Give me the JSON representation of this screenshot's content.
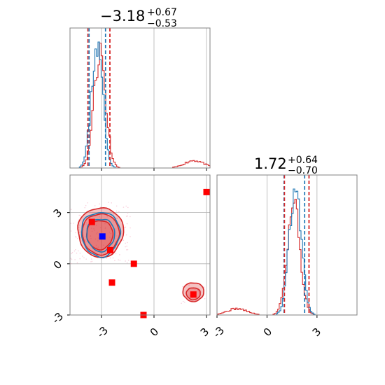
{
  "chart_data": {
    "type": "corner",
    "colors": {
      "series_a": "#1f77b4",
      "series_b": "#d62728",
      "grid": "#b0b0b0",
      "scatter": "#f4a6bd",
      "marker": "#ff0000",
      "marker_alt": "#0000ff"
    },
    "grid": true,
    "ranges": {
      "x": [
        -4.8,
        3.2
      ],
      "y": [
        -3.0,
        5.2
      ],
      "x2": [
        -3.0,
        5.4
      ]
    },
    "ticks": {
      "x": [
        "-3",
        "0",
        "3"
      ],
      "y": [
        "-3",
        "0",
        "3"
      ],
      "x2": [
        "-3",
        "0",
        "3"
      ]
    },
    "ticks_values": {
      "x": [
        -3,
        0,
        3
      ],
      "y": [
        -3,
        0,
        3
      ],
      "x2": [
        -3,
        0,
        3
      ]
    },
    "titles": [
      {
        "median": "−3.18",
        "upper": "+0.67",
        "lower": "−0.53"
      },
      {
        "median": "1.72",
        "upper": "+0.64",
        "lower": "−0.70"
      }
    ],
    "hist1": {
      "quantiles_a": [
        -3.71,
        -2.77
      ],
      "quantiles_b": [
        -3.78,
        -2.52
      ],
      "median_a": -2.77,
      "median_b": -2.52,
      "series_a_peaks": [
        {
          "x": -3.25,
          "h": 1.0
        }
      ],
      "series_b_peaks": [
        {
          "x": -3.1,
          "h": 0.92
        },
        {
          "x": 2.3,
          "h": 0.06
        }
      ]
    },
    "hist2": {
      "quantiles_a": [
        1.02,
        2.26
      ],
      "quantiles_b": [
        1.05,
        2.52
      ],
      "median_a": 2.26,
      "median_b": 2.52,
      "series_a_peaks": [
        {
          "x": 1.7,
          "h": 1.0
        }
      ],
      "series_b_peaks": [
        {
          "x": 1.6,
          "h": 0.88
        },
        {
          "x": -1.8,
          "h": 0.05
        }
      ]
    },
    "joint": {
      "contours_b": [
        {
          "cx": -3.05,
          "cy": 1.85,
          "rx": 1.3,
          "ry": 1.45
        },
        {
          "cx": -3.05,
          "cy": 1.75,
          "rx": 1.05,
          "ry": 1.2
        },
        {
          "cx": -3.1,
          "cy": 1.7,
          "rx": 0.75,
          "ry": 0.85
        },
        {
          "cx": 2.25,
          "cy": -1.65,
          "rx": 0.6,
          "ry": 0.55
        },
        {
          "cx": 2.25,
          "cy": -1.75,
          "rx": 0.4,
          "ry": 0.35
        }
      ],
      "contours_a": [
        {
          "cx": -3.05,
          "cy": 1.75,
          "rx": 1.1,
          "ry": 1.3
        },
        {
          "cx": -3.05,
          "cy": 1.7,
          "rx": 0.8,
          "ry": 0.95
        }
      ],
      "markers_red": [
        {
          "x": -3.55,
          "y": 2.45
        },
        {
          "x": -2.5,
          "y": 0.8
        },
        {
          "x": -1.15,
          "y": 0.0
        },
        {
          "x": -2.4,
          "y": -1.1
        },
        {
          "x": 2.25,
          "y": -1.8
        },
        {
          "x": 3.0,
          "y": 4.2
        },
        {
          "x": -0.6,
          "y": -3.0
        }
      ],
      "markers_blue": [
        {
          "x": -2.95,
          "y": 1.6
        }
      ]
    }
  }
}
